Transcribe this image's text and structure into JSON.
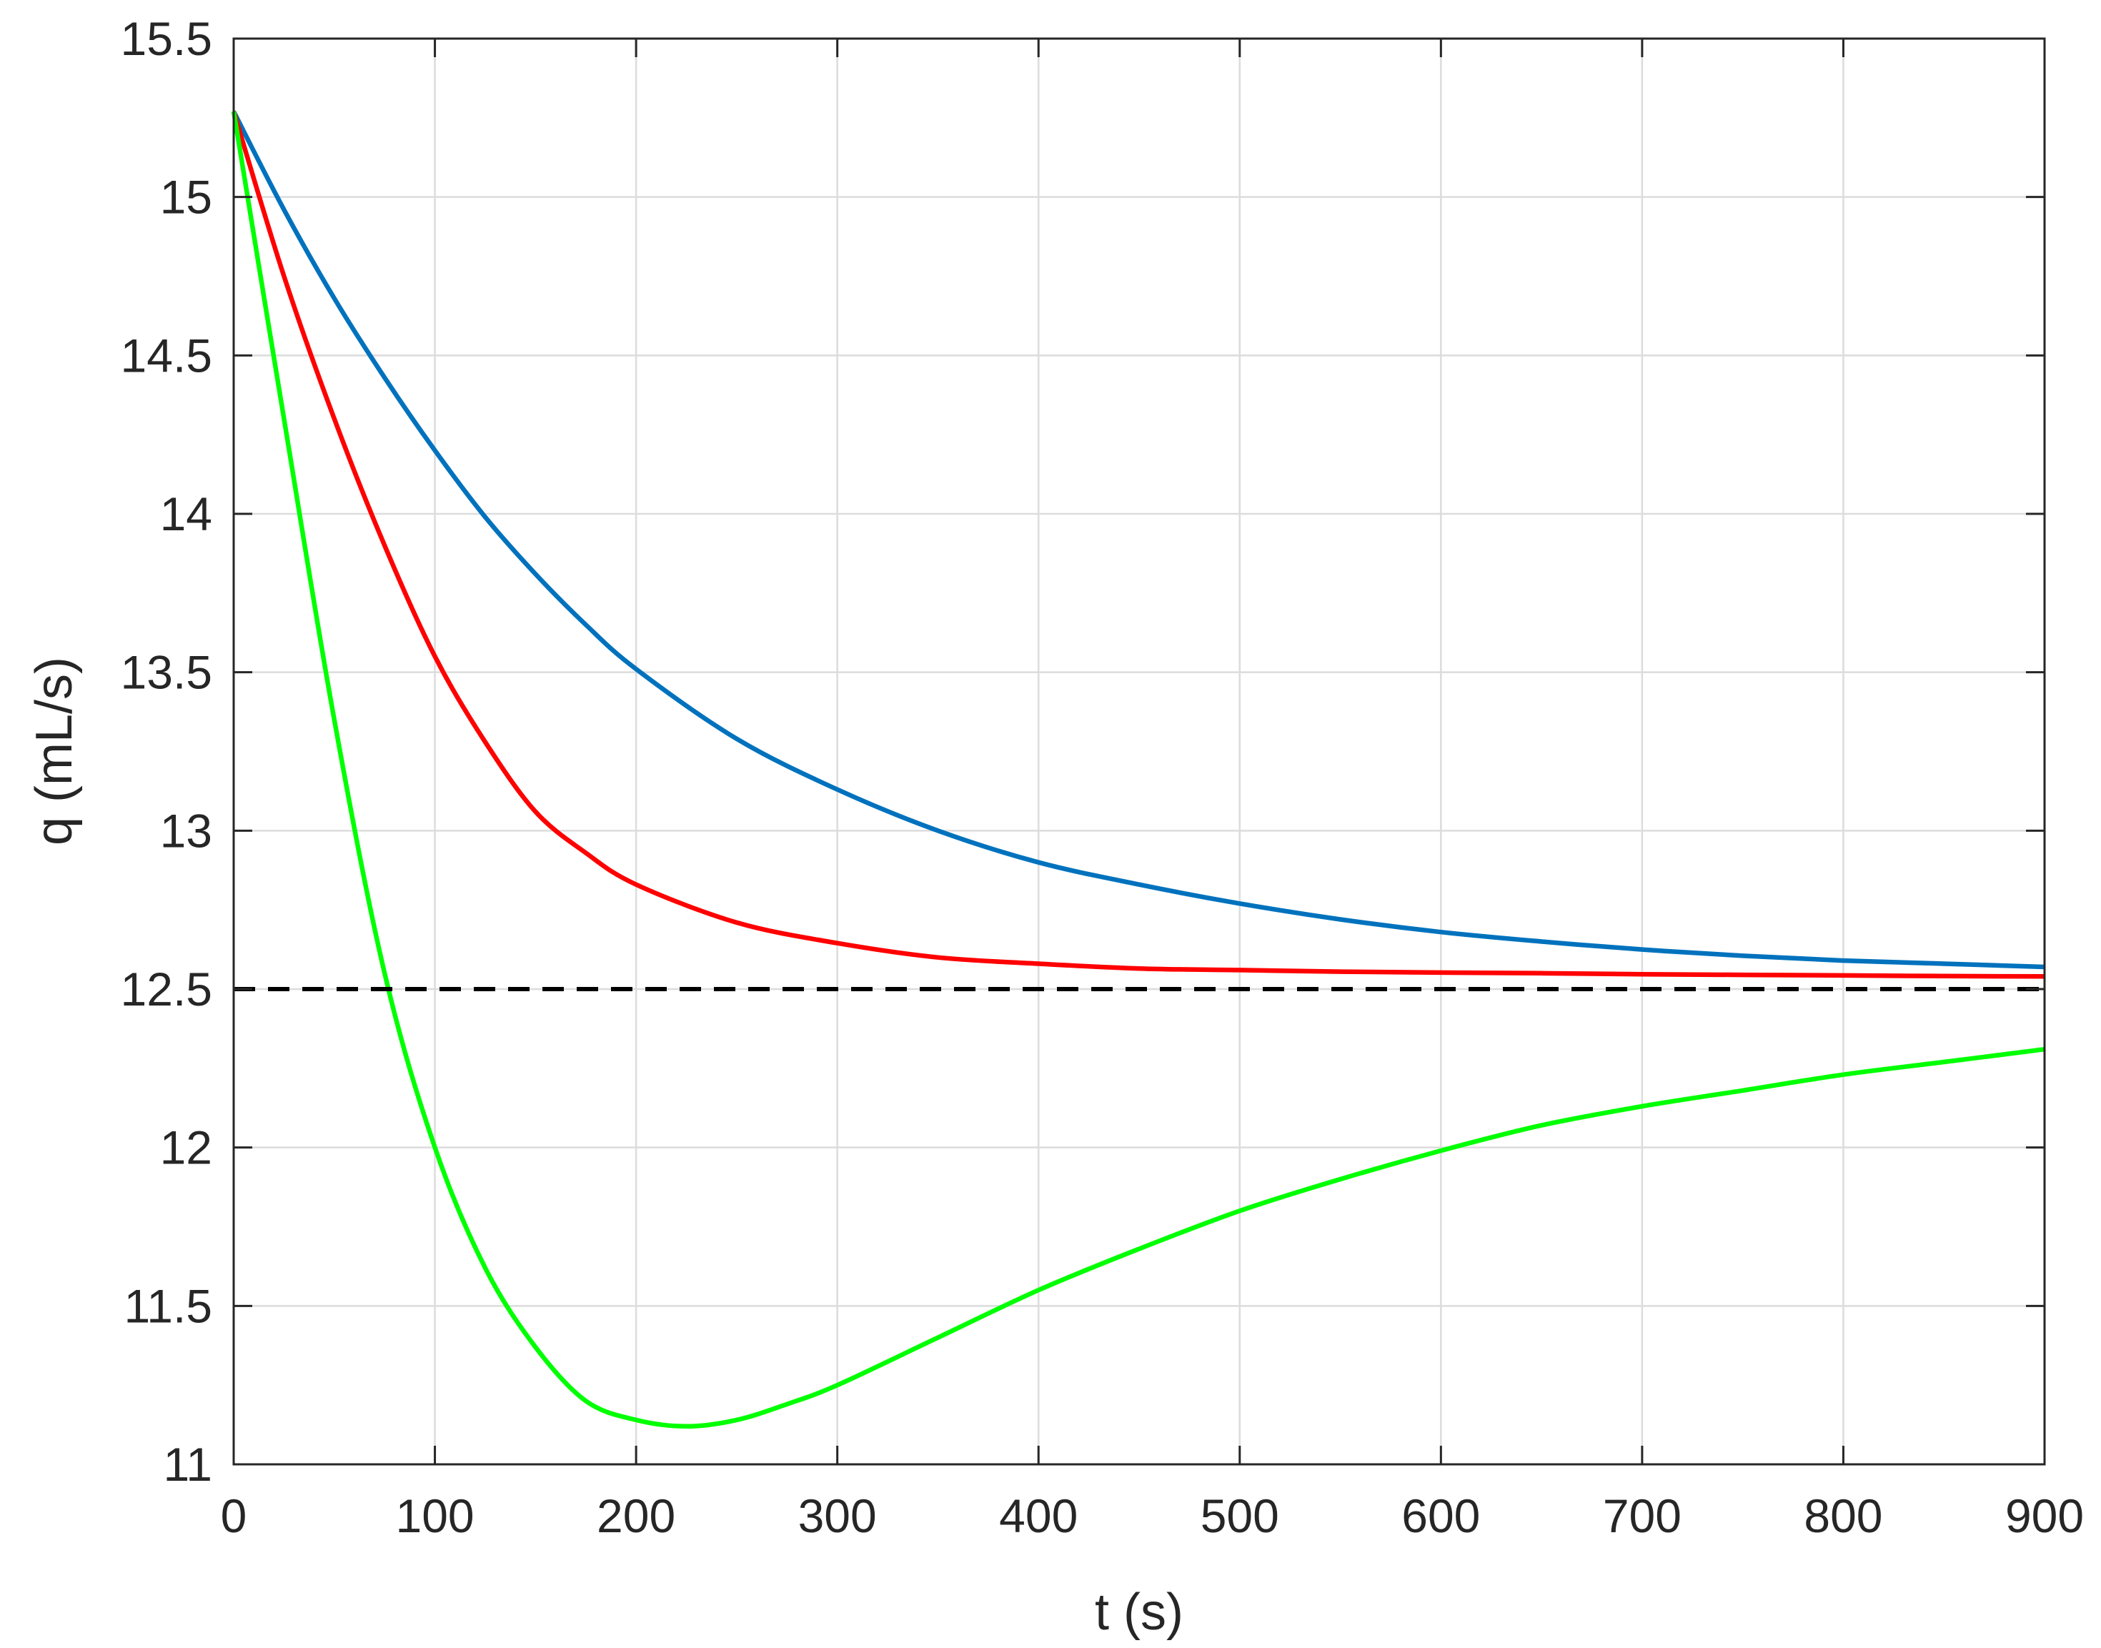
{
  "chart_data": {
    "type": "line",
    "title": "",
    "xlabel": "t (s)",
    "ylabel": "q (mL/s)",
    "xlim": [
      0,
      900
    ],
    "ylim": [
      11,
      15.5
    ],
    "xticks": [
      0,
      100,
      200,
      300,
      400,
      500,
      600,
      700,
      800,
      900
    ],
    "xtick_labels": [
      "0",
      "100",
      "200",
      "300",
      "400",
      "500",
      "600",
      "700",
      "800",
      "900"
    ],
    "yticks": [
      11,
      11.5,
      12,
      12.5,
      13,
      13.5,
      14,
      14.5,
      15,
      15.5
    ],
    "ytick_labels": [
      "11",
      "11.5",
      "12",
      "12.5",
      "13",
      "13.5",
      "14",
      "14.5",
      "15",
      "15.5"
    ],
    "grid": true,
    "legend": "none",
    "series": [
      {
        "color": "#0072BD",
        "style": "solid",
        "x": [
          0,
          25,
          50,
          75,
          100,
          125,
          150,
          175,
          200,
          250,
          300,
          350,
          400,
          450,
          500,
          550,
          600,
          650,
          700,
          750,
          800,
          850,
          900
        ],
        "y": [
          15.27,
          14.96,
          14.68,
          14.43,
          14.2,
          13.99,
          13.81,
          13.65,
          13.51,
          13.29,
          13.13,
          13.0,
          12.9,
          12.83,
          12.77,
          12.72,
          12.68,
          12.65,
          12.625,
          12.605,
          12.59,
          12.58,
          12.57
        ]
      },
      {
        "color": "#FF0000",
        "style": "solid",
        "x": [
          0,
          25,
          50,
          75,
          100,
          125,
          150,
          175,
          200,
          250,
          300,
          350,
          400,
          450,
          500,
          550,
          600,
          650,
          700,
          750,
          800,
          850,
          900
        ],
        "y": [
          15.27,
          14.75,
          14.3,
          13.9,
          13.55,
          13.28,
          13.06,
          12.93,
          12.83,
          12.71,
          12.645,
          12.6,
          12.58,
          12.565,
          12.56,
          12.555,
          12.552,
          12.55,
          12.547,
          12.545,
          12.543,
          12.541,
          12.54
        ]
      },
      {
        "color": "#00FF00",
        "style": "solid",
        "x": [
          0,
          25,
          50,
          75,
          100,
          125,
          150,
          175,
          200,
          225,
          250,
          275,
          300,
          350,
          400,
          450,
          500,
          550,
          600,
          650,
          700,
          750,
          800,
          850,
          900
        ],
        "y": [
          15.27,
          14.3,
          13.35,
          12.55,
          12.0,
          11.62,
          11.37,
          11.2,
          11.14,
          11.12,
          11.14,
          11.19,
          11.25,
          11.4,
          11.55,
          11.68,
          11.8,
          11.9,
          11.99,
          12.07,
          12.13,
          12.18,
          12.23,
          12.27,
          12.31
        ]
      },
      {
        "color": "#000000",
        "style": "dashed",
        "x": [
          0,
          900
        ],
        "y": [
          12.5,
          12.5
        ]
      }
    ]
  }
}
